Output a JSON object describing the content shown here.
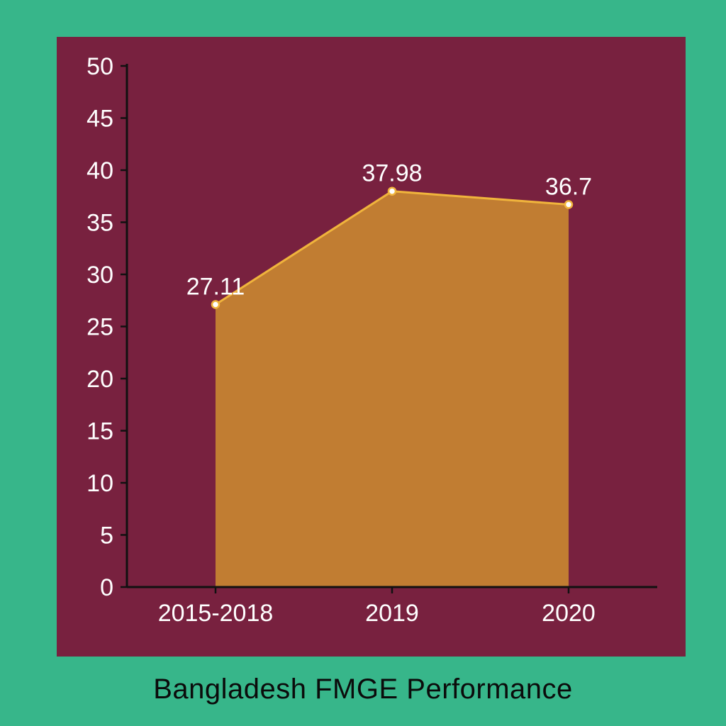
{
  "title": "Bangladesh FMGE Performance",
  "colors": {
    "background": "#37b68a",
    "panel": "#78213f",
    "area_fill": "#c17d32",
    "line": "#f0b43c",
    "axis": "#111111",
    "text": "#ffffff"
  },
  "chart_data": {
    "type": "area",
    "title": "Bangladesh FMGE Performance",
    "xlabel": "",
    "ylabel": "",
    "categories": [
      "2015-2018",
      "2019",
      "2020"
    ],
    "values": [
      27.11,
      37.98,
      36.7
    ],
    "data_labels": [
      "27.11",
      "37.98",
      "36.7"
    ],
    "ylim": [
      0,
      50
    ],
    "yticks": [
      0,
      5,
      10,
      15,
      20,
      25,
      30,
      35,
      40,
      45,
      50
    ],
    "grid": false,
    "legend": "none"
  }
}
